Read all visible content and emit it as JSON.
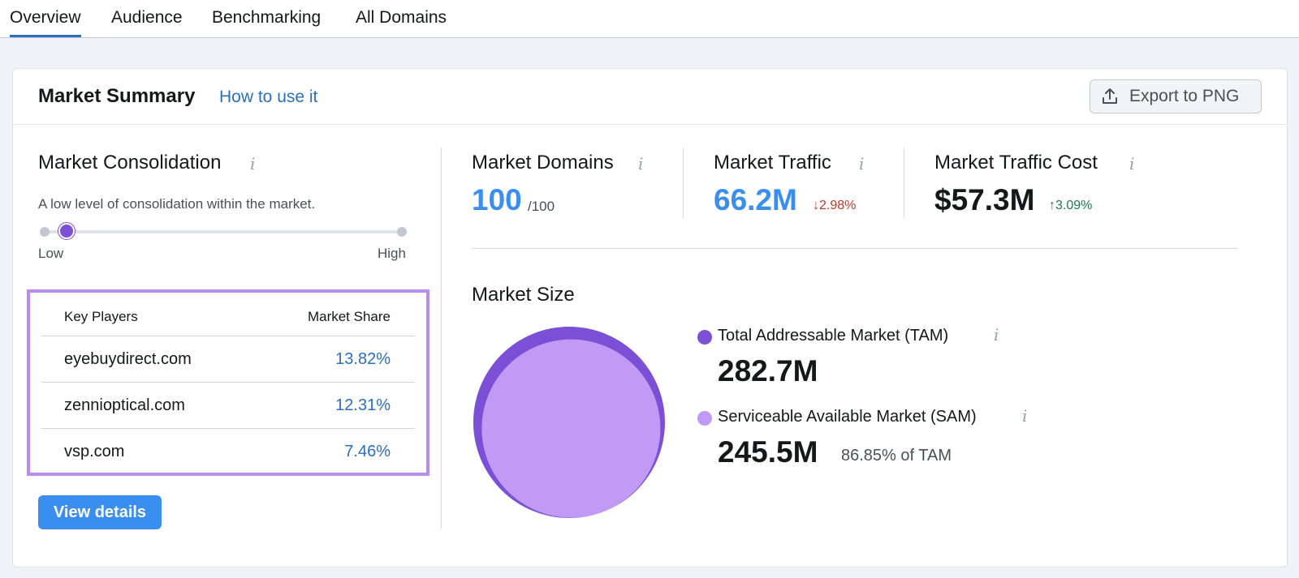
{
  "tabs": [
    "Overview",
    "Audience",
    "Benchmarking",
    "All Domains"
  ],
  "header": {
    "title": "Market Summary",
    "how_link": "How to use it",
    "export_label": "Export to PNG"
  },
  "consolidation": {
    "title": "Market Consolidation",
    "info": "i",
    "description": "A low level of consolidation within the market.",
    "low_label": "Low",
    "high_label": "High",
    "level": 0.06
  },
  "key_players": {
    "col_player": "Key Players",
    "col_share": "Market Share",
    "rows": [
      {
        "domain": "eyebuydirect.com",
        "share": "13.82%"
      },
      {
        "domain": "zennioptical.com",
        "share": "12.31%"
      },
      {
        "domain": "vsp.com",
        "share": "7.46%"
      }
    ]
  },
  "view_details": "View details",
  "metrics": {
    "domains": {
      "title": "Market Domains",
      "info": "i",
      "value": "100",
      "sub": "/100"
    },
    "traffic": {
      "title": "Market Traffic",
      "info": "i",
      "value": "66.2M",
      "delta": "↓2.98%"
    },
    "cost": {
      "title": "Market Traffic Cost",
      "info": "i",
      "value": "$57.3M",
      "delta": "↑3.09%"
    }
  },
  "market_size": {
    "title": "Market Size",
    "tam": {
      "label": "Total Addressable Market (TAM)",
      "info": "i",
      "value": "282.7M"
    },
    "sam": {
      "label": "Serviceable Available Market (SAM)",
      "info": "i",
      "value": "245.5M",
      "pct": "86.85% of TAM"
    },
    "sam_fraction": 0.8685
  },
  "colors": {
    "accent_blue": "#2b6fbf",
    "metric_blue": "#3a8ef0",
    "tam_purple": "#7b4fd6",
    "sam_purple": "#c19af5",
    "down_red": "#c0352b",
    "up_green": "#1f7a4a",
    "highlight_border": "#b98af0"
  }
}
